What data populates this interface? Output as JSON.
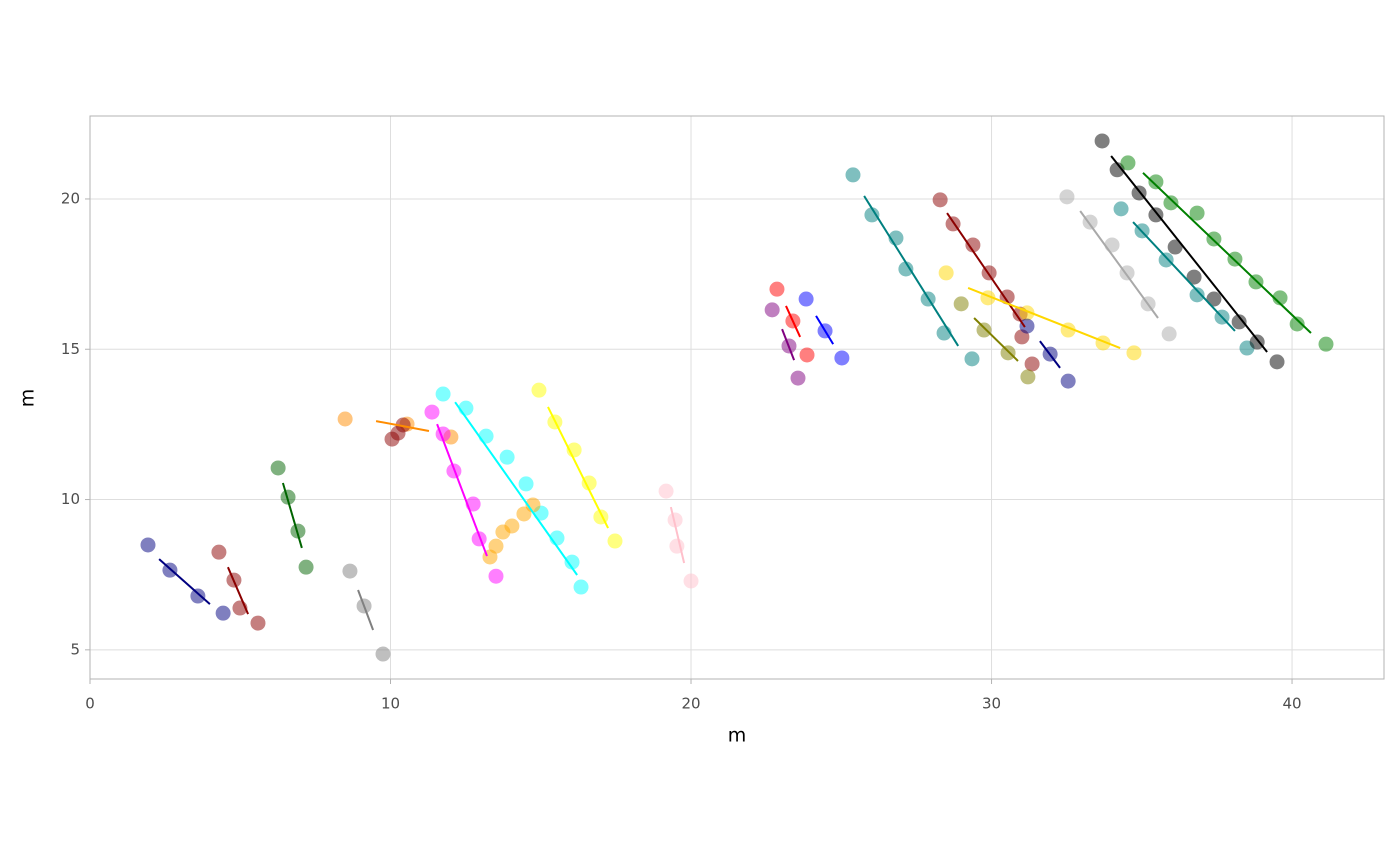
{
  "chart_data": {
    "type": "scatter",
    "x_label": "m",
    "y_label": "m",
    "xlim": [
      0,
      43.06
    ],
    "ylim": [
      4.03,
      22.76
    ],
    "xticks": [
      0,
      10,
      20,
      30,
      40
    ],
    "yticks": [
      5,
      10,
      15,
      20
    ],
    "grid": true,
    "series": [
      {
        "color": "#000080",
        "x": [
          1.93,
          2.66,
          3.59,
          4.43
        ],
        "values": [
          8.49,
          7.65,
          6.79,
          6.22
        ],
        "fit_x": [
          2.3,
          3.99
        ],
        "fit_values": [
          8.02,
          6.52
        ]
      },
      {
        "color": "#8b0000",
        "x": [
          4.29,
          4.79,
          4.99,
          5.59
        ],
        "values": [
          8.25,
          7.32,
          6.39,
          5.89
        ],
        "fit_x": [
          4.59,
          5.26
        ],
        "fit_values": [
          7.75,
          6.19
        ]
      },
      {
        "color": "#006400",
        "x": [
          6.26,
          6.59,
          6.92,
          7.19
        ],
        "values": [
          11.05,
          10.08,
          8.95,
          7.75
        ],
        "fit_x": [
          6.42,
          7.05
        ],
        "fit_values": [
          10.55,
          8.39
        ]
      },
      {
        "color": "#808080",
        "x": [
          8.65,
          9.12,
          9.75
        ],
        "values": [
          7.62,
          6.46,
          4.86
        ],
        "fit_x": [
          8.92,
          9.42
        ],
        "fit_values": [
          6.99,
          5.66
        ]
      },
      {
        "color": "#ff8c00",
        "x": [
          8.49,
          10.55,
          12.01
        ],
        "values": [
          12.68,
          12.51,
          12.08
        ],
        "fit_x": [
          9.52,
          11.28
        ],
        "fit_values": [
          12.61,
          12.28
        ]
      },
      {
        "color": "#8b0000",
        "x": [
          10.05,
          10.25,
          10.42
        ],
        "values": [
          12.01,
          12.21,
          12.48
        ]
      },
      {
        "color": "#ff00ff",
        "x": [
          11.38,
          11.75,
          12.11,
          12.75,
          12.95,
          13.51
        ],
        "values": [
          12.91,
          12.18,
          10.95,
          9.85,
          8.69,
          7.45
        ],
        "fit_x": [
          11.55,
          13.21
        ],
        "fit_values": [
          12.51,
          8.12
        ]
      },
      {
        "color": "#00ffff",
        "x": [
          11.75,
          12.51,
          13.18,
          13.88,
          14.51,
          15.01,
          15.54,
          16.04,
          16.34
        ],
        "values": [
          13.51,
          13.04,
          12.11,
          11.41,
          10.52,
          9.55,
          8.72,
          7.92,
          7.09
        ],
        "fit_x": [
          12.15,
          16.21
        ],
        "fit_values": [
          13.24,
          7.49
        ]
      },
      {
        "color": "#ffa500",
        "x": [
          13.31,
          13.51,
          13.74,
          14.04,
          14.44,
          14.74
        ],
        "values": [
          8.09,
          8.45,
          8.92,
          9.12,
          9.52,
          9.82
        ]
      },
      {
        "color": "#ffff00",
        "x": [
          14.94,
          15.47,
          16.11,
          16.61,
          17.0,
          17.47
        ],
        "values": [
          13.64,
          12.58,
          11.65,
          10.55,
          9.42,
          8.62
        ],
        "fit_x": [
          15.24,
          17.24
        ],
        "fit_values": [
          13.08,
          9.05
        ]
      },
      {
        "color": "#ffc0cb",
        "x": [
          19.17,
          19.47,
          19.53,
          20.0
        ],
        "values": [
          10.28,
          9.32,
          8.45,
          7.29
        ],
        "fit_x": [
          19.33,
          19.77
        ],
        "fit_values": [
          9.75,
          7.89
        ]
      },
      {
        "color": "#800080",
        "x": [
          22.7,
          23.26,
          23.56
        ],
        "values": [
          16.31,
          15.11,
          14.04
        ],
        "fit_x": [
          23.03,
          23.43
        ],
        "fit_values": [
          15.67,
          14.64
        ]
      },
      {
        "color": "#ff0000",
        "x": [
          22.86,
          23.39,
          23.86
        ],
        "values": [
          17.0,
          15.94,
          14.81
        ],
        "fit_x": [
          23.16,
          23.63
        ],
        "fit_values": [
          16.44,
          15.41
        ]
      },
      {
        "color": "#0000ff",
        "x": [
          23.83,
          24.46,
          25.02
        ],
        "values": [
          16.67,
          15.61,
          14.71
        ],
        "fit_x": [
          24.16,
          24.73
        ],
        "fit_values": [
          16.11,
          15.17
        ]
      },
      {
        "color": "#008080",
        "x": [
          25.39,
          26.02,
          26.82,
          27.15,
          27.89,
          28.42,
          29.35
        ],
        "values": [
          20.8,
          19.47,
          18.7,
          17.67,
          16.67,
          15.54,
          14.68
        ],
        "fit_x": [
          25.76,
          28.89
        ],
        "fit_values": [
          20.1,
          15.11
        ]
      },
      {
        "color": "#8b0000",
        "x": [
          28.29,
          28.72,
          29.38,
          29.92,
          30.52,
          30.95,
          31.01,
          31.35
        ],
        "values": [
          19.97,
          19.17,
          18.47,
          17.54,
          16.74,
          16.17,
          15.41,
          14.51
        ],
        "fit_x": [
          28.52,
          31.11
        ],
        "fit_values": [
          19.53,
          15.74
        ]
      },
      {
        "color": "#ffd700",
        "x": [
          28.49,
          29.88,
          31.18,
          32.55,
          33.71,
          34.74
        ],
        "values": [
          17.54,
          16.71,
          16.21,
          15.64,
          15.21,
          14.88
        ],
        "fit_x": [
          29.22,
          34.28
        ],
        "fit_values": [
          17.04,
          15.04
        ]
      },
      {
        "color": "#808000",
        "x": [
          28.99,
          29.75,
          30.55,
          31.21
        ],
        "values": [
          16.51,
          15.64,
          14.88,
          14.08
        ],
        "fit_x": [
          29.42,
          30.88
        ],
        "fit_values": [
          16.04,
          14.61
        ]
      },
      {
        "color": "#000080",
        "x": [
          31.18,
          31.95,
          32.55
        ],
        "values": [
          15.77,
          14.84,
          13.94
        ],
        "fit_x": [
          31.61,
          32.28
        ],
        "fit_values": [
          15.27,
          14.38
        ]
      },
      {
        "color": "#a9a9a9",
        "x": [
          32.51,
          33.28,
          34.01,
          34.51,
          35.21,
          35.91
        ],
        "values": [
          20.07,
          19.23,
          18.47,
          17.54,
          16.51,
          15.51
        ],
        "fit_x": [
          32.95,
          35.54
        ],
        "fit_values": [
          19.6,
          16.04
        ]
      },
      {
        "color": "#008080",
        "x": [
          34.31,
          35.01,
          35.81,
          36.84,
          37.67,
          38.5
        ],
        "values": [
          19.67,
          18.94,
          17.97,
          16.81,
          16.07,
          15.04
        ],
        "fit_x": [
          34.71,
          38.1
        ],
        "fit_values": [
          19.23,
          15.61
        ]
      },
      {
        "color": "#000000",
        "x": [
          33.68,
          34.18,
          34.91,
          35.47,
          36.11,
          36.74,
          37.4,
          38.24,
          38.84,
          39.5
        ],
        "values": [
          21.93,
          20.97,
          20.2,
          19.47,
          18.4,
          17.4,
          16.67,
          15.91,
          15.24,
          14.58
        ],
        "fit_x": [
          33.98,
          39.17
        ],
        "fit_values": [
          21.43,
          14.91
        ]
      },
      {
        "color": "#008000",
        "x": [
          34.54,
          35.47,
          35.97,
          36.84,
          37.4,
          38.1,
          38.8,
          39.6,
          40.17,
          41.13
        ],
        "values": [
          21.2,
          20.57,
          19.87,
          19.53,
          18.67,
          18.0,
          17.24,
          16.71,
          15.84,
          15.17
        ],
        "fit_x": [
          35.04,
          40.63
        ],
        "fit_values": [
          20.87,
          15.54
        ]
      }
    ]
  }
}
